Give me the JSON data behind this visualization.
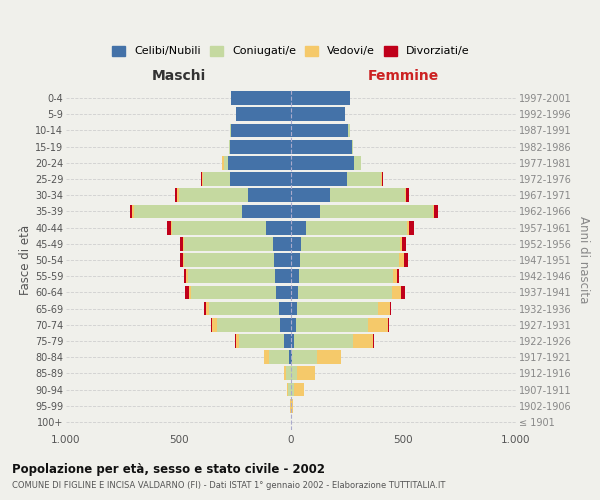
{
  "age_groups": [
    "100+",
    "95-99",
    "90-94",
    "85-89",
    "80-84",
    "75-79",
    "70-74",
    "65-69",
    "60-64",
    "55-59",
    "50-54",
    "45-49",
    "40-44",
    "35-39",
    "30-34",
    "25-29",
    "20-24",
    "15-19",
    "10-14",
    "5-9",
    "0-4"
  ],
  "birth_years": [
    "≤ 1901",
    "1902-1906",
    "1907-1911",
    "1912-1916",
    "1917-1921",
    "1922-1926",
    "1927-1931",
    "1932-1936",
    "1937-1941",
    "1942-1946",
    "1947-1951",
    "1952-1956",
    "1957-1961",
    "1962-1966",
    "1967-1971",
    "1972-1976",
    "1977-1981",
    "1982-1986",
    "1987-1991",
    "1992-1996",
    "1997-2001"
  ],
  "males": {
    "celibi": [
      0,
      0,
      2,
      2,
      8,
      30,
      50,
      55,
      65,
      70,
      75,
      80,
      110,
      220,
      190,
      270,
      280,
      270,
      265,
      245,
      265
    ],
    "coniugati": [
      0,
      2,
      10,
      20,
      90,
      200,
      280,
      310,
      380,
      390,
      400,
      395,
      420,
      480,
      310,
      120,
      20,
      5,
      5,
      0,
      0
    ],
    "vedovi": [
      0,
      2,
      8,
      10,
      20,
      15,
      20,
      15,
      10,
      5,
      5,
      5,
      5,
      5,
      5,
      5,
      5,
      0,
      0,
      0,
      0
    ],
    "divorziati": [
      0,
      0,
      0,
      0,
      0,
      5,
      5,
      5,
      15,
      10,
      15,
      15,
      15,
      10,
      10,
      5,
      0,
      0,
      0,
      0,
      0
    ]
  },
  "females": {
    "nubili": [
      0,
      0,
      2,
      2,
      5,
      15,
      20,
      25,
      30,
      35,
      40,
      45,
      65,
      130,
      175,
      250,
      280,
      270,
      255,
      240,
      260
    ],
    "coniugate": [
      0,
      2,
      10,
      25,
      110,
      260,
      320,
      360,
      420,
      420,
      440,
      440,
      450,
      500,
      330,
      150,
      30,
      5,
      5,
      0,
      0
    ],
    "vedove": [
      0,
      5,
      45,
      80,
      105,
      90,
      90,
      55,
      40,
      15,
      20,
      10,
      10,
      5,
      5,
      5,
      0,
      0,
      0,
      0,
      0
    ],
    "divorziate": [
      0,
      0,
      0,
      0,
      0,
      5,
      5,
      5,
      15,
      10,
      20,
      15,
      20,
      20,
      15,
      5,
      0,
      0,
      0,
      0,
      0
    ]
  },
  "colors": {
    "celibi": "#4472a8",
    "coniugati": "#c5d9a0",
    "vedovi": "#f5c96a",
    "divorziati": "#c0001a"
  },
  "xlim": 1000,
  "title": "Popolazione per età, sesso e stato civile - 2002",
  "subtitle": "COMUNE DI FIGLINE E INCISA VALDARNO (FI) - Dati ISTAT 1° gennaio 2002 - Elaborazione TUTTITALIA.IT",
  "ylabel": "Fasce di età",
  "ylabel_right": "Anni di nascita",
  "xlabel_left": "Maschi",
  "xlabel_right": "Femmine",
  "legend_labels": [
    "Celibi/Nubili",
    "Coniugati/e",
    "Vedovi/e",
    "Divorziati/e"
  ],
  "background_color": "#f0f0eb",
  "bar_height": 0.85
}
